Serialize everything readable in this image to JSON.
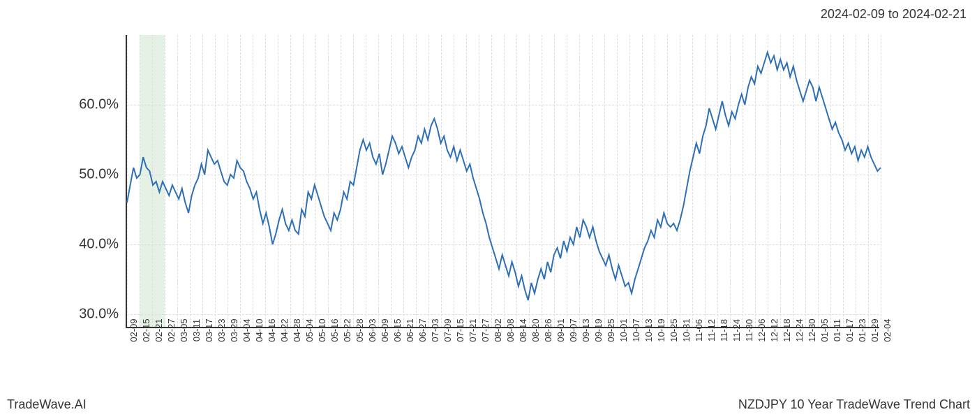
{
  "header": {
    "date_range": "2024-02-09 to 2024-02-21"
  },
  "footer": {
    "brand": "TradeWave.AI",
    "chart_title": "NZDJPY 10 Year TradeWave Trend Chart"
  },
  "chart": {
    "type": "line",
    "line_color": "#2e6fb4",
    "background_color": "#ffffff",
    "grid_color": "#dddddd",
    "axis_color": "#333333",
    "highlight_band_color": "rgba(150,200,150,0.25)",
    "highlight_band_start_idx": 1,
    "highlight_band_end_idx": 3,
    "ylim": [
      28,
      70
    ],
    "yticks": [
      30,
      40,
      50,
      60
    ],
    "ytick_labels": [
      "30.0%",
      "40.0%",
      "50.0%",
      "60.0%"
    ],
    "ytick_fontsize": 20,
    "xtick_labels": [
      "02-09",
      "02-15",
      "02-21",
      "02-27",
      "03-05",
      "03-11",
      "03-17",
      "03-23",
      "03-29",
      "04-04",
      "04-10",
      "04-16",
      "04-22",
      "04-28",
      "05-04",
      "05-10",
      "05-16",
      "05-22",
      "05-28",
      "06-03",
      "06-09",
      "06-15",
      "06-21",
      "06-27",
      "07-03",
      "07-09",
      "07-15",
      "07-21",
      "07-27",
      "08-02",
      "08-08",
      "08-14",
      "08-20",
      "08-26",
      "09-01",
      "09-07",
      "09-13",
      "09-19",
      "09-25",
      "10-01",
      "10-07",
      "10-13",
      "10-19",
      "10-25",
      "10-31",
      "11-06",
      "11-12",
      "11-18",
      "11-24",
      "11-30",
      "12-06",
      "12-12",
      "12-18",
      "12-24",
      "12-30",
      "01-05",
      "01-11",
      "01-17",
      "01-23",
      "01-29",
      "02-04"
    ],
    "xtick_fontsize": 13,
    "values": [
      46.0,
      48.5,
      51.0,
      49.5,
      50.0,
      52.5,
      51.0,
      50.5,
      48.5,
      49.0,
      47.5,
      49.0,
      48.0,
      47.0,
      48.5,
      47.5,
      46.5,
      48.0,
      46.0,
      44.5,
      47.0,
      48.5,
      49.5,
      51.5,
      50.0,
      53.5,
      52.5,
      51.5,
      52.0,
      50.5,
      49.0,
      48.5,
      50.0,
      49.5,
      52.0,
      51.0,
      50.5,
      49.0,
      48.0,
      46.5,
      47.5,
      45.0,
      43.0,
      44.5,
      42.5,
      40.0,
      41.5,
      43.5,
      45.0,
      43.0,
      42.0,
      43.5,
      42.0,
      41.5,
      45.0,
      44.0,
      47.5,
      46.5,
      48.5,
      47.0,
      45.5,
      44.0,
      43.0,
      42.0,
      44.5,
      43.5,
      45.0,
      47.5,
      46.5,
      49.0,
      48.5,
      51.0,
      53.5,
      55.0,
      53.5,
      54.5,
      52.5,
      51.5,
      53.0,
      50.0,
      51.5,
      53.5,
      55.5,
      54.5,
      53.0,
      54.0,
      52.5,
      51.0,
      52.5,
      53.5,
      55.5,
      54.5,
      56.5,
      55.0,
      57.0,
      58.0,
      56.5,
      54.5,
      55.5,
      53.5,
      52.5,
      54.0,
      52.0,
      53.5,
      52.0,
      50.5,
      51.5,
      49.5,
      48.0,
      46.5,
      44.5,
      43.0,
      41.0,
      39.5,
      38.0,
      36.5,
      38.5,
      37.0,
      35.5,
      37.5,
      36.0,
      34.0,
      35.5,
      33.5,
      32.0,
      34.5,
      33.0,
      35.0,
      36.5,
      35.0,
      37.5,
      36.0,
      38.5,
      39.5,
      38.0,
      40.5,
      39.0,
      41.0,
      40.0,
      42.5,
      41.0,
      43.5,
      42.5,
      41.0,
      42.5,
      40.5,
      39.0,
      38.0,
      37.0,
      38.5,
      36.5,
      35.0,
      37.0,
      35.5,
      34.0,
      34.5,
      33.0,
      35.0,
      36.5,
      38.0,
      39.5,
      40.5,
      42.0,
      41.0,
      43.5,
      42.5,
      44.5,
      43.0,
      42.5,
      43.0,
      42.0,
      43.5,
      45.5,
      48.0,
      50.5,
      52.5,
      54.5,
      53.0,
      55.5,
      57.0,
      59.5,
      58.0,
      56.5,
      58.5,
      60.5,
      58.5,
      57.0,
      59.0,
      58.0,
      60.0,
      61.5,
      60.0,
      62.5,
      64.0,
      63.0,
      65.5,
      64.5,
      66.0,
      67.5,
      66.0,
      67.0,
      65.0,
      66.5,
      65.0,
      66.0,
      64.0,
      65.5,
      63.5,
      62.0,
      60.5,
      62.0,
      63.5,
      62.5,
      60.5,
      62.5,
      61.0,
      59.5,
      58.0,
      56.5,
      57.5,
      56.0,
      55.0,
      53.5,
      54.5,
      53.0,
      54.0,
      52.0,
      53.5,
      52.5,
      54.0,
      52.5,
      51.5,
      50.5,
      51.0
    ]
  }
}
